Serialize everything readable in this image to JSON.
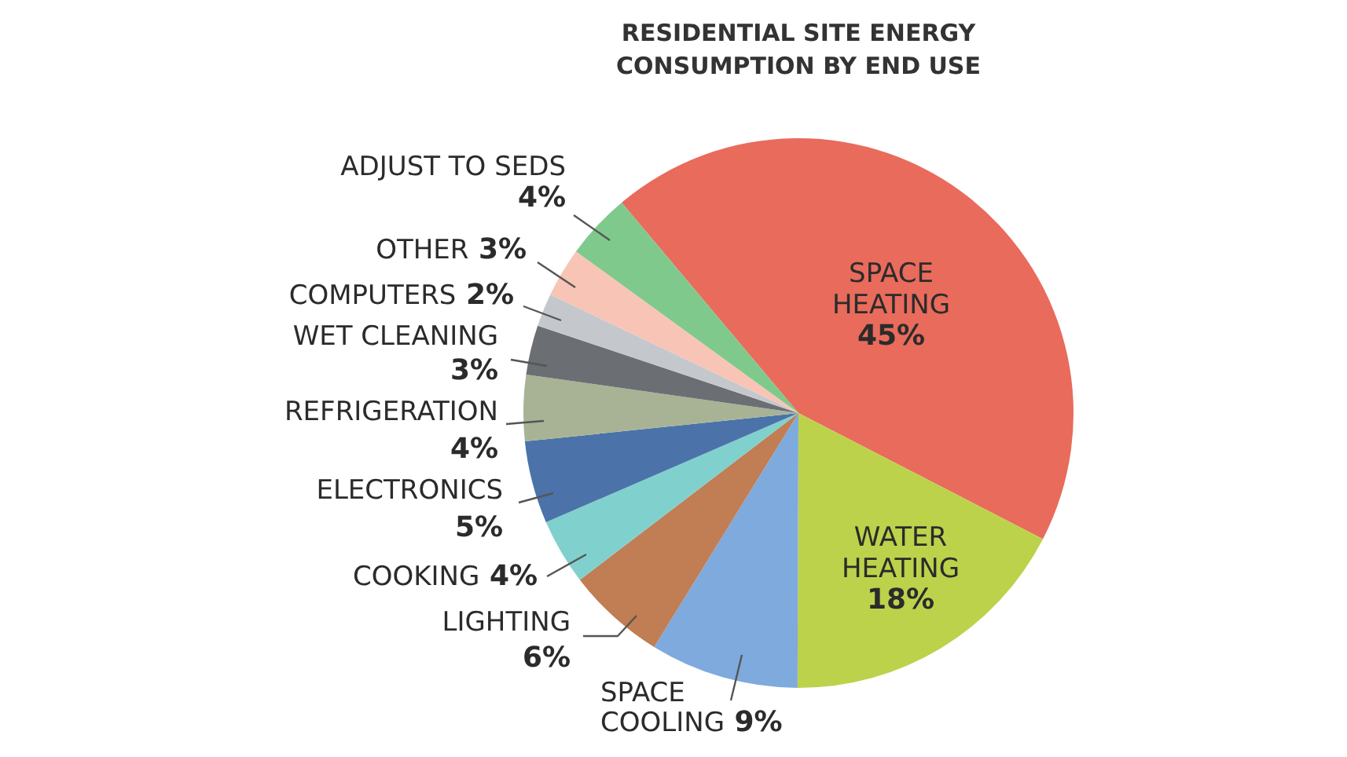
{
  "chart_data": {
    "type": "pie",
    "title": "RESIDENTIAL SITE ENERGY CONSUMPTION BY END USE",
    "categories": [
      "SPACE HEATING",
      "WATER HEATING",
      "SPACE COOLING",
      "LIGHTING",
      "COOKING",
      "ELECTRONICS",
      "REFRIGERATION",
      "WET CLEANING",
      "COMPUTERS",
      "OTHER",
      "ADJUST TO SEDS"
    ],
    "values": [
      45,
      18,
      9,
      6,
      4,
      5,
      4,
      3,
      2,
      3,
      4
    ],
    "colors": [
      "#e96b5c",
      "#bdd24b",
      "#7eaadd",
      "#c17d53",
      "#80d1cd",
      "#4b73a9",
      "#a8b396",
      "#6b6e72",
      "#c4c8cd",
      "#f8c4b5",
      "#80c98c"
    ],
    "value_labels": [
      "45%",
      "18%",
      "9%",
      "6%",
      "4%",
      "5%",
      "4%",
      "3%",
      "2%",
      "3%",
      "4%"
    ]
  }
}
